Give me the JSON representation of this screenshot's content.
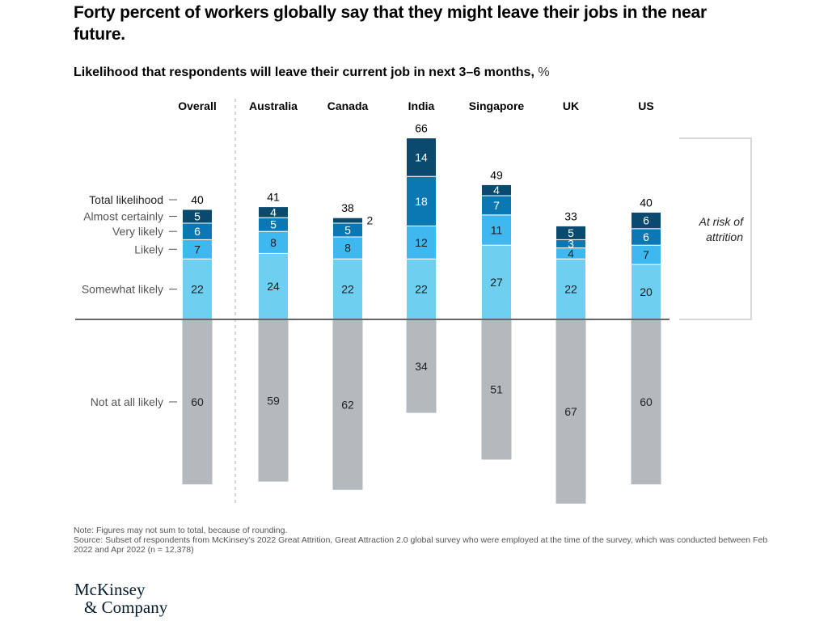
{
  "title": "Forty percent of workers globally say that they might leave their jobs in the near future.",
  "subtitle": "Likelihood that respondents will leave their current job in next 3–6 months,",
  "subtitle_unit": "%",
  "note": "Note: Figures may not sum to total, because of rounding.",
  "source": "Source: Subset of respondents from McKinsey’s 2022 Great Attrition, Great Attraction 2.0 global survey who were employed at the time of the survey, which was conducted between Feb 2022 and Apr 2022 (n = 12,378)",
  "logo": {
    "line1": "McKinsey",
    "line2": "& Company"
  },
  "chart_data": {
    "type": "bar",
    "stacked": true,
    "diverging": true,
    "title": "Likelihood that respondents will leave their current job in next 3–6 months, %",
    "categories": [
      "Overall",
      "Australia",
      "Canada",
      "India",
      "Singapore",
      "UK",
      "US"
    ],
    "totals_label": "Total likelihood",
    "totals": [
      40,
      41,
      38,
      66,
      49,
      33,
      40
    ],
    "series": [
      {
        "name": "Somewhat likely",
        "color": "#6ecff0",
        "direction": "up",
        "values": [
          22,
          24,
          22,
          22,
          27,
          22,
          20
        ]
      },
      {
        "name": "Likely",
        "color": "#3fb7ef",
        "direction": "up",
        "values": [
          7,
          8,
          8,
          12,
          11,
          4,
          7
        ]
      },
      {
        "name": "Very likely",
        "color": "#0c78b3",
        "direction": "up",
        "values": [
          6,
          5,
          5,
          18,
          7,
          3,
          6
        ]
      },
      {
        "name": "Almost certainly",
        "color": "#0a4a6e",
        "direction": "up",
        "values": [
          5,
          4,
          2,
          14,
          4,
          5,
          6
        ]
      },
      {
        "name": "Not at all likely",
        "color": "#b3b9bd",
        "direction": "down",
        "values": [
          60,
          59,
          62,
          34,
          51,
          67,
          60
        ]
      }
    ],
    "annotation": "At risk of attrition",
    "separator_after": "Overall",
    "xlabel": "",
    "ylabel": "%"
  }
}
